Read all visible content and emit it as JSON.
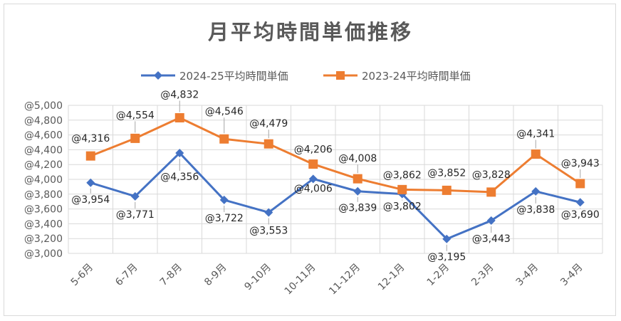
{
  "chart_data": {
    "type": "line",
    "title": "月平均時間単価推移",
    "xlabel": "",
    "ylabel": "",
    "categories": [
      "5-6月",
      "6-7月",
      "7-8月",
      "8-9月",
      "9-10月",
      "10-11月",
      "11-12月",
      "12-1月",
      "1-2月",
      "2-3月",
      "3-4月",
      "3-4月"
    ],
    "series": [
      {
        "name": "2024-25平均時間単価",
        "color": "#4472c4",
        "marker": "diamond",
        "values": [
          3954,
          3771,
          4356,
          3722,
          3553,
          4006,
          3839,
          3802,
          3195,
          3443,
          3838,
          3690
        ],
        "labels": [
          "@3,954",
          "@3,771",
          "@4,356",
          "@3,722",
          "@3,553",
          "@4,006",
          "@3,839",
          "@3,802",
          "@3,195",
          "@3,443",
          "@3,838",
          "@3,690"
        ]
      },
      {
        "name": "2023-24平均時間単価",
        "color": "#ed7d31",
        "marker": "square",
        "values": [
          4316,
          4554,
          4832,
          4546,
          4479,
          4206,
          4008,
          3862,
          3852,
          3828,
          4341,
          3943
        ],
        "labels": [
          "@4,316",
          "@4,554",
          "@4,832",
          "@4,546",
          "@4,479",
          "@4,206",
          "@4,008",
          "@3,862",
          "@3,852",
          "@3,828",
          "@4,341",
          "@3,943"
        ]
      }
    ],
    "ylim": [
      3000,
      5000
    ],
    "yticks": [
      3000,
      3200,
      3400,
      3600,
      3800,
      4000,
      4200,
      4400,
      4600,
      4800,
      5000
    ],
    "ytick_labels": [
      "@3,000",
      "@3,200",
      "@3,400",
      "@3,600",
      "@3,800",
      "@4,000",
      "@4,200",
      "@4,400",
      "@4,600",
      "@4,800",
      "@5,000"
    ],
    "grid": true,
    "legend_position": "top"
  }
}
